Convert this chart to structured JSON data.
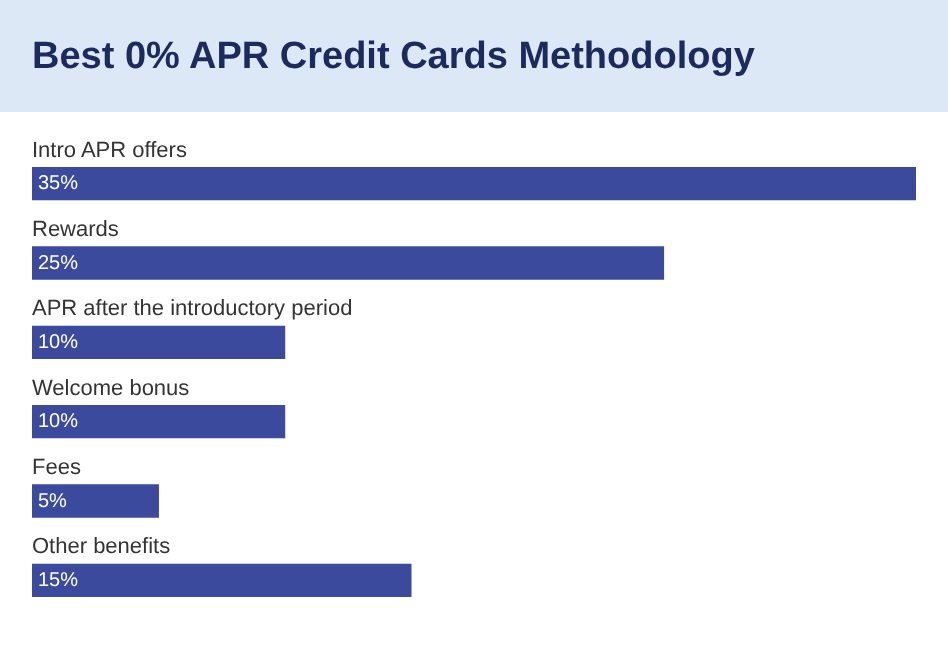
{
  "chart_data": {
    "type": "bar",
    "title": "Best 0% APR Credit Cards Methodology",
    "orientation": "horizontal",
    "categories": [
      "Intro APR offers",
      "Rewards",
      "APR after the introductory period",
      "Welcome bonus",
      "Fees",
      "Other benefits"
    ],
    "values": [
      35,
      25,
      10,
      10,
      5,
      15
    ],
    "value_labels": [
      "35%",
      "25%",
      "10%",
      "10%",
      "5%",
      "15%"
    ],
    "color": "#3b4a9c",
    "xlim": [
      0,
      35
    ]
  }
}
